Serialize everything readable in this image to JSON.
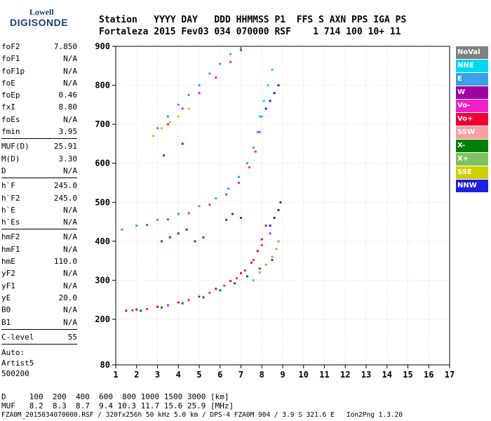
{
  "logo": {
    "top": "Lowell",
    "bottom": "DIGISONDE"
  },
  "header": {
    "row1": "Station   YYYY DAY   DDD HHMMSS P1  FFS S AXN PPS IGA PS",
    "row2": "Fortaleza 2015 Fev03 034 070000 RSF    1 714 100 10+ 11"
  },
  "params": [
    {
      "name": "foF2",
      "value": "7.850"
    },
    {
      "name": "foF1",
      "value": "N/A"
    },
    {
      "name": "foF1p",
      "value": "N/A"
    },
    {
      "name": "foE",
      "value": "N/A"
    },
    {
      "name": "foEp",
      "value": "0.46"
    },
    {
      "name": "fxI",
      "value": "8.80"
    },
    {
      "name": "foEs",
      "value": "N/A"
    },
    {
      "name": "fmin",
      "value": "3.95"
    },
    {
      "name": "MUF(D)",
      "value": "25.91"
    },
    {
      "name": "M(D)",
      "value": "3.30"
    },
    {
      "name": "D",
      "value": "N/A"
    },
    {
      "name": "h`F",
      "value": "245.0"
    },
    {
      "name": "h`F2",
      "value": "245.0"
    },
    {
      "name": "h`E",
      "value": "N/A"
    },
    {
      "name": "h`Es",
      "value": "N/A"
    },
    {
      "name": "hmF2",
      "value": "N/A"
    },
    {
      "name": "hmF1",
      "value": "N/A"
    },
    {
      "name": "hmE",
      "value": "110.0"
    },
    {
      "name": "yF2",
      "value": "N/A"
    },
    {
      "name": "yF1",
      "value": "N/A"
    },
    {
      "name": "yE",
      "value": "20.0"
    },
    {
      "name": "B0",
      "value": "N/A"
    },
    {
      "name": "B1",
      "value": "N/A"
    },
    {
      "name": "C-level",
      "value": "55"
    }
  ],
  "auto": {
    "line1": "Auto:",
    "line2": "Artist5",
    "line3": "500200"
  },
  "legend": [
    {
      "label": "NoVal",
      "color": "#808080"
    },
    {
      "label": "NNE",
      "color": "#00d8f0"
    },
    {
      "label": "E",
      "color": "#3aa0e8"
    },
    {
      "label": "W",
      "color": "#a000a0"
    },
    {
      "label": "Vo-",
      "color": "#f020c8"
    },
    {
      "label": "Vo+",
      "color": "#f00030"
    },
    {
      "label": "SSW",
      "color": "#f8a0a0"
    },
    {
      "label": "X-",
      "color": "#008000"
    },
    {
      "label": "X+",
      "color": "#80c060"
    },
    {
      "label": "SSE",
      "color": "#d0d000"
    },
    {
      "label": "NNW",
      "color": "#2020e0"
    }
  ],
  "tables": {
    "distance": "D     100  200  400  600  800 1000 1500 3000 [km]",
    "muf": "MUF   8.2  8.3  8.7  9.4 10.3 11.7 15.6 25.9 [MHz]"
  },
  "footer": "FZA0M_2015034070000.RSF / 320fx256h 50 kHz 5.0 km / DPS-4 FZA0M 904 / 3.9 S 321.6 E   Ion2Png 1.3.20",
  "chart_data": {
    "type": "scatter",
    "xlim": [
      1,
      17
    ],
    "ylim": [
      80,
      900
    ],
    "x_ticks": [
      1,
      2,
      3,
      4,
      5,
      6,
      7,
      8,
      9,
      10,
      11,
      12,
      13,
      14,
      15,
      16,
      17
    ],
    "y_ticks": [
      80,
      200,
      300,
      400,
      500,
      600,
      700,
      800,
      900
    ],
    "grid": true,
    "series": [
      {
        "color": "#f00030",
        "x": [
          1.5,
          2.0,
          3.0,
          4.0,
          5.0,
          5.8,
          6.5,
          7.0,
          7.5,
          7.8,
          8.0,
          8.2
        ],
        "y": [
          222,
          225,
          232,
          243,
          258,
          278,
          298,
          318,
          345,
          375,
          405,
          440
        ]
      },
      {
        "color": "#f020c8",
        "x": [
          1.8,
          2.5,
          3.5,
          4.5,
          5.5,
          6.2,
          6.8,
          7.2,
          7.6,
          8.0,
          8.4
        ],
        "y": [
          223,
          226,
          236,
          249,
          268,
          286,
          305,
          325,
          352,
          390,
          420
        ]
      },
      {
        "color": "#008000",
        "x": [
          2.2,
          3.2,
          4.2,
          5.2,
          6.0,
          6.7,
          7.3,
          7.9,
          8.5,
          8.7
        ],
        "y": [
          222,
          230,
          241,
          256,
          274,
          292,
          310,
          330,
          352,
          380
        ]
      },
      {
        "color": "#80c060",
        "x": [
          7.6,
          7.9,
          8.2,
          8.5,
          8.7,
          8.8
        ],
        "y": [
          300,
          320,
          340,
          360,
          380,
          400
        ]
      },
      {
        "color": "#3aa0e8",
        "x": [
          1.3,
          2.0,
          3.0,
          4.0,
          5.0,
          5.8,
          6.4,
          6.9,
          7.3,
          7.6,
          7.8,
          8.0
        ],
        "y": [
          430,
          440,
          455,
          470,
          490,
          510,
          535,
          565,
          600,
          640,
          680,
          720
        ]
      },
      {
        "color": "#f020c8",
        "x": [
          2.5,
          3.5,
          4.5,
          5.5,
          6.3,
          6.9,
          7.4,
          7.7,
          7.9
        ],
        "y": [
          442,
          456,
          472,
          494,
          520,
          550,
          590,
          630,
          680
        ]
      },
      {
        "color": "#d0d000",
        "x": [
          2.8,
          3.2,
          3.6,
          4.0,
          4.5
        ],
        "y": [
          670,
          690,
          705,
          720,
          740
        ]
      },
      {
        "color": "#3aa0e8",
        "x": [
          3.0,
          3.5,
          4.0,
          4.5,
          5.0,
          5.5,
          6.0,
          6.5,
          7.0
        ],
        "y": [
          690,
          720,
          750,
          775,
          800,
          830,
          855,
          880,
          895
        ]
      },
      {
        "color": "#f020c8",
        "x": [
          3.5,
          4.2,
          5.0,
          5.8,
          6.5,
          7.0
        ],
        "y": [
          700,
          740,
          780,
          820,
          860,
          890
        ]
      },
      {
        "color": "#2020e0",
        "x": [
          8.2,
          8.4,
          8.6,
          8.8
        ],
        "y": [
          740,
          760,
          780,
          800
        ]
      },
      {
        "color": "#00d8f0",
        "x": [
          7.9,
          8.1,
          8.3,
          8.5
        ],
        "y": [
          720,
          760,
          800,
          840
        ]
      },
      {
        "color": "#a000a0",
        "x": [
          3.2,
          3.6,
          4.0,
          4.4,
          4.8,
          5.2,
          6.3,
          6.6,
          7.0,
          3.3,
          4.2
        ],
        "y": [
          400,
          410,
          420,
          430,
          400,
          410,
          455,
          470,
          460,
          620,
          650
        ]
      },
      {
        "color": "#2020e0",
        "x": [
          8.4,
          8.6,
          8.8,
          8.9
        ],
        "y": [
          440,
          460,
          480,
          500
        ]
      }
    ]
  }
}
